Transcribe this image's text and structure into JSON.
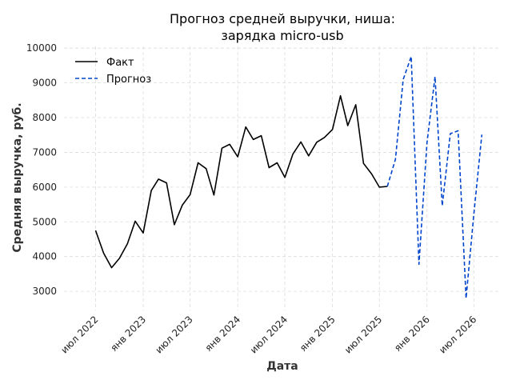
{
  "chart_data": {
    "type": "line",
    "title": "Прогноз средней выручки, ниша:",
    "title_line2": "зарядка micro-usb",
    "xlabel": "Дата",
    "ylabel": "Средняя выручка, руб.",
    "ylim": [
      2450,
      10050
    ],
    "xlim": [
      "2022-03-01",
      "2026-10-10"
    ],
    "yticks": [
      3000,
      4000,
      5000,
      6000,
      7000,
      8000,
      9000,
      10000
    ],
    "xticks": [
      {
        "date": "2022-07-01",
        "label": "июл 2022"
      },
      {
        "date": "2023-01-01",
        "label": "янв 2023"
      },
      {
        "date": "2023-07-01",
        "label": "июл 2023"
      },
      {
        "date": "2024-01-01",
        "label": "янв 2024"
      },
      {
        "date": "2024-07-01",
        "label": "июл 2024"
      },
      {
        "date": "2025-01-01",
        "label": "янв 2025"
      },
      {
        "date": "2025-07-01",
        "label": "июл 2025"
      },
      {
        "date": "2026-01-01",
        "label": "янв 2026"
      },
      {
        "date": "2026-07-01",
        "label": "июл 2026"
      }
    ],
    "grid": true,
    "legend_position": "top-left",
    "series": [
      {
        "name": "Факт",
        "color": "#000000",
        "style": "solid",
        "x": [
          "2022-07-01",
          "2022-08-01",
          "2022-09-01",
          "2022-10-01",
          "2022-11-01",
          "2022-12-01",
          "2023-01-01",
          "2023-02-01",
          "2023-03-01",
          "2023-04-01",
          "2023-05-01",
          "2023-06-01",
          "2023-07-01",
          "2023-08-01",
          "2023-09-01",
          "2023-10-01",
          "2023-11-01",
          "2023-12-01",
          "2024-01-01",
          "2024-02-01",
          "2024-03-01",
          "2024-04-01",
          "2024-05-01",
          "2024-06-01",
          "2024-07-01",
          "2024-08-01",
          "2024-09-01",
          "2024-10-01",
          "2024-11-01",
          "2024-12-01",
          "2025-01-01",
          "2025-02-01",
          "2025-03-01",
          "2025-04-01",
          "2025-05-01",
          "2025-06-01",
          "2025-07-01",
          "2025-08-01"
        ],
        "values": [
          4750,
          4100,
          3680,
          3950,
          4370,
          5020,
          4680,
          5900,
          6230,
          6120,
          4920,
          5480,
          5780,
          6700,
          6530,
          5770,
          7120,
          7230,
          6870,
          7730,
          7370,
          7480,
          6560,
          6700,
          6280,
          6950,
          7300,
          6900,
          7290,
          7430,
          7660,
          8630,
          7770,
          8370,
          6680,
          6380,
          6000,
          6020
        ]
      },
      {
        "name": "Прогноз",
        "color": "#0044cc",
        "style": "dashed",
        "x": [
          "2025-08-01",
          "2025-09-01",
          "2025-10-01",
          "2025-11-01",
          "2025-12-01",
          "2026-01-01",
          "2026-02-01",
          "2026-03-01",
          "2026-04-01",
          "2026-05-01",
          "2026-06-01",
          "2026-07-01",
          "2026-08-01"
        ],
        "values": [
          6020,
          6800,
          9100,
          9760,
          3780,
          7270,
          9180,
          5460,
          7540,
          7620,
          2800,
          5220,
          7510
        ]
      }
    ]
  }
}
